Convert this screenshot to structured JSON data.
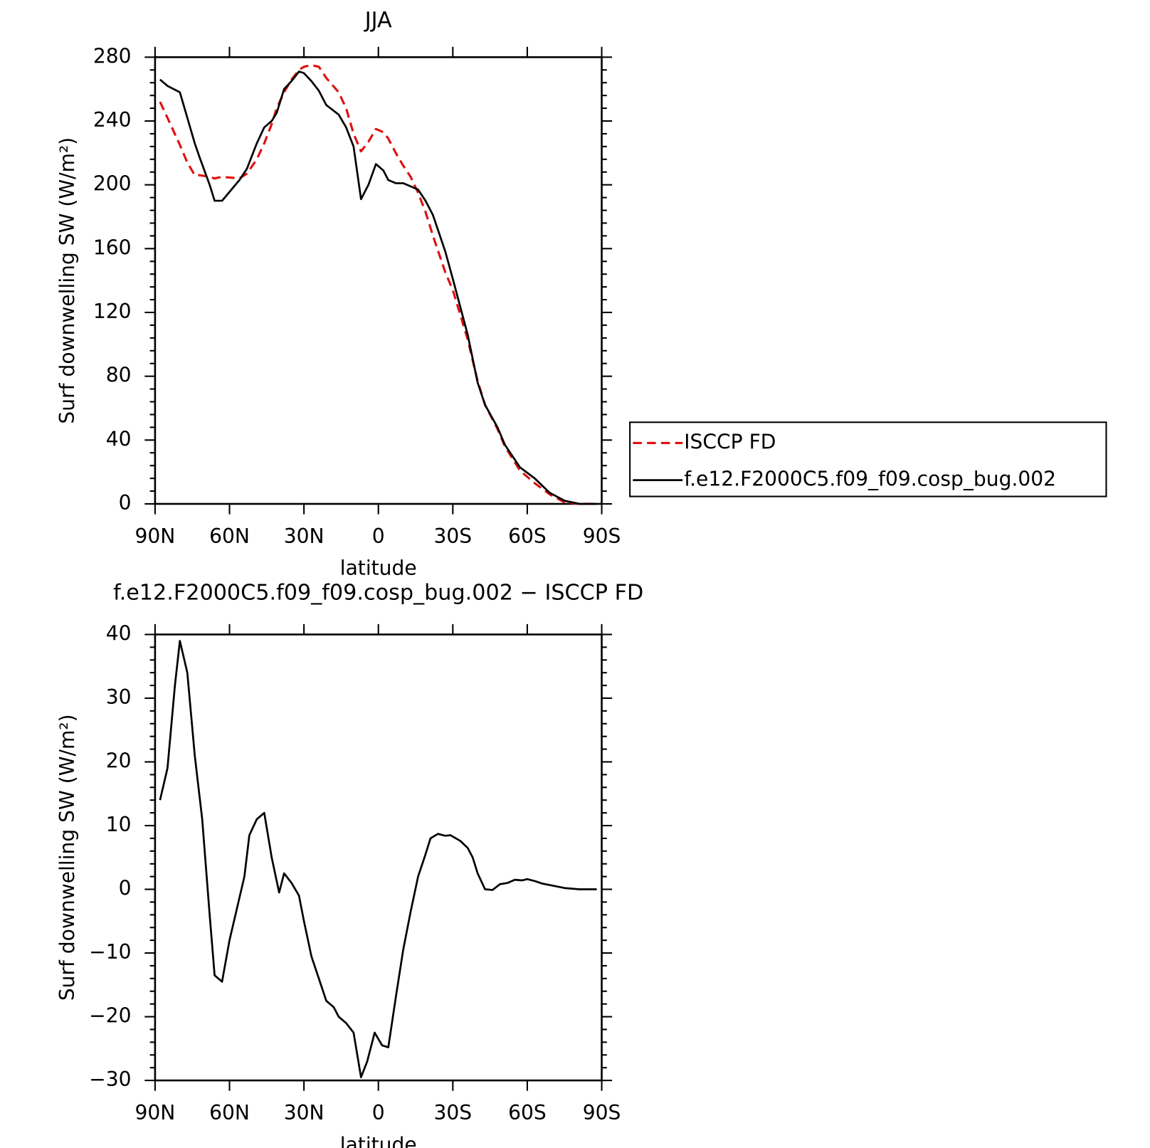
{
  "chart_data": [
    {
      "type": "line",
      "title": "JJA",
      "xlabel": "latitude",
      "ylabel": "Surf downwelling SW (W/m²)",
      "x": [
        88,
        85,
        80,
        77,
        74,
        72,
        68,
        66,
        63,
        56,
        53,
        49,
        46,
        43,
        41,
        38,
        35,
        32,
        30,
        27,
        24,
        21,
        16,
        13,
        10,
        7,
        4,
        1,
        -2,
        -4,
        -7,
        -10,
        -13,
        -16,
        -19,
        -22,
        -27,
        -30,
        -36,
        -40,
        -43,
        -48,
        -51,
        -57,
        -63,
        -69,
        -75,
        -81,
        -88
      ],
      "series": [
        {
          "name": "ISCCP FD",
          "color": "#e01010",
          "dash": true,
          "values": [
            252,
            242,
            225,
            214,
            206,
            206,
            205,
            204,
            205,
            204,
            207,
            216,
            226,
            238,
            248,
            258,
            266,
            272,
            274,
            275,
            274,
            267,
            258,
            248,
            232,
            221,
            227,
            235,
            233,
            229,
            220,
            212,
            205,
            195,
            183,
            168,
            145,
            134,
            103,
            77,
            62,
            47,
            36,
            21,
            13,
            6,
            1,
            0,
            0
          ]
        },
        {
          "name": "f.e12.F2000C5.f09_f09.cosp_bug.002",
          "color": "#000000",
          "dash": false,
          "values": [
            266,
            262,
            258,
            242,
            226,
            217,
            200,
            190,
            190,
            203,
            210,
            226,
            236,
            240,
            245,
            260,
            265,
            271,
            270,
            265,
            259,
            250,
            244,
            236,
            224,
            191,
            200,
            213,
            209,
            203,
            201,
            201,
            199,
            197,
            190,
            181,
            158,
            141,
            106,
            76,
            62,
            48,
            37,
            23,
            16,
            7,
            2,
            0,
            0
          ]
        }
      ],
      "xlim": [
        90,
        -90
      ],
      "xticks": [
        {
          "value": 90,
          "label": "90N"
        },
        {
          "value": 60,
          "label": "60N"
        },
        {
          "value": 30,
          "label": "30N"
        },
        0,
        {
          "value": -30,
          "label": "30S"
        },
        {
          "value": -60,
          "label": "60S"
        },
        {
          "value": -90,
          "label": "90S"
        }
      ],
      "ylim": [
        0,
        280
      ],
      "yticks": [
        0,
        40,
        80,
        120,
        160,
        200,
        240,
        280
      ],
      "yminor": [
        8,
        16,
        24,
        32,
        48,
        56,
        64,
        72,
        88,
        96,
        104,
        112,
        128,
        136,
        144,
        152,
        168,
        176,
        184,
        192,
        208,
        216,
        224,
        232,
        248,
        256,
        264,
        272
      ],
      "legend": "outside right"
    },
    {
      "type": "line",
      "title": "f.e12.F2000C5.f09_f09.cosp_bug.002 − ISCCP FD",
      "xlabel": "latitude",
      "ylabel": "Surf downwelling SW (W/m²)",
      "x": [
        88,
        85,
        82,
        80,
        77,
        74,
        71,
        68,
        66,
        63,
        60,
        57,
        54,
        52,
        49,
        46,
        43,
        40,
        38,
        35,
        32,
        30,
        27,
        24,
        21,
        18,
        16,
        13,
        10,
        7,
        4.5,
        1.5,
        -1.5,
        -4,
        -7,
        -10,
        -13,
        -16,
        -19,
        -21,
        -24,
        -27,
        -29,
        -33,
        -36,
        -38,
        -40,
        -43,
        -46,
        -49,
        -52,
        -55,
        -58,
        -60,
        -63,
        -66,
        -70,
        -75,
        -81,
        -88
      ],
      "series": [
        {
          "color": "#000000",
          "dash": false,
          "values": [
            14,
            19,
            32,
            39,
            34,
            21,
            11,
            -4,
            -13.5,
            -14.5,
            -8,
            -3,
            2,
            8.5,
            11,
            12,
            5,
            -0.5,
            2.5,
            1,
            -1,
            -5,
            -10.5,
            -14,
            -17.5,
            -18.5,
            -20,
            -21,
            -22.5,
            -29.5,
            -27,
            -22.5,
            -24.5,
            -24.8,
            -17,
            -9.5,
            -3.5,
            2,
            5.5,
            8,
            8.7,
            8.4,
            8.5,
            7.6,
            6.5,
            5,
            2.5,
            0,
            -0.1,
            0.8,
            1,
            1.5,
            1.4,
            1.6,
            1.3,
            0.9,
            0.6,
            0.2,
            0,
            0
          ]
        }
      ],
      "xlim": [
        90,
        -90
      ],
      "xticks": [
        {
          "value": 90,
          "label": "90N"
        },
        {
          "value": 60,
          "label": "60N"
        },
        {
          "value": 30,
          "label": "30N"
        },
        0,
        {
          "value": -30,
          "label": "30S"
        },
        {
          "value": -60,
          "label": "60S"
        },
        {
          "value": -90,
          "label": "90S"
        }
      ],
      "ylim": [
        -30,
        40
      ],
      "yticks": [
        {
          "value": -30,
          "label": "−30"
        },
        {
          "value": -20,
          "label": "−20"
        },
        {
          "value": -10,
          "label": "−10"
        },
        0,
        10,
        20,
        30,
        40
      ],
      "yminor": [
        -28,
        -26,
        -24,
        -22,
        -18,
        -16,
        -14,
        -12,
        -8,
        -6,
        -4,
        -2,
        2,
        4,
        6,
        8,
        12,
        14,
        16,
        18,
        22,
        24,
        26,
        28,
        32,
        34,
        36,
        38
      ]
    }
  ]
}
